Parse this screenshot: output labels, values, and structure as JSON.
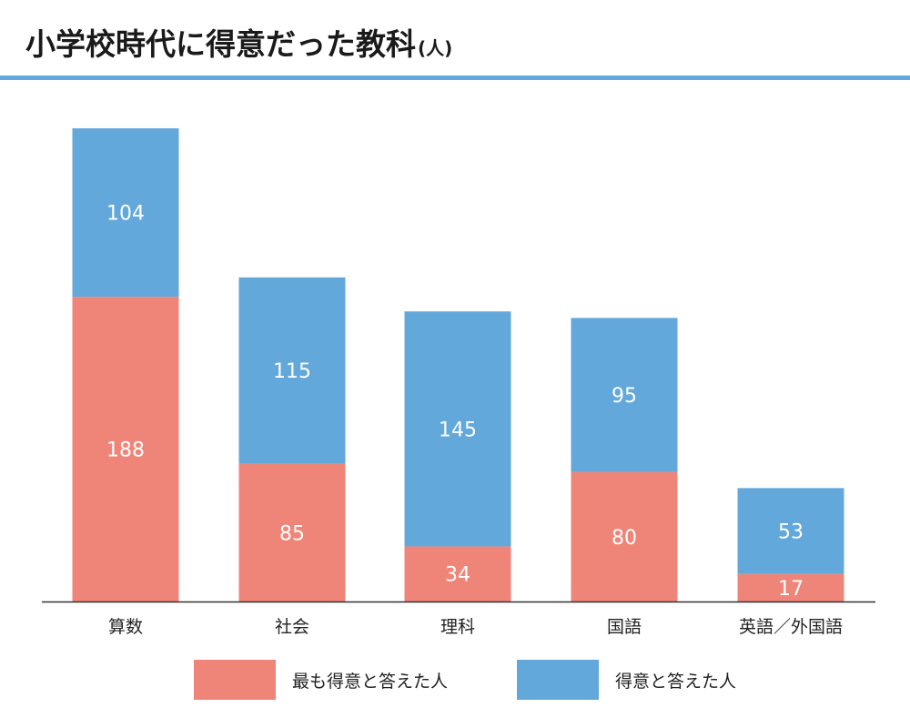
{
  "title": "小学校時代に得意だった教科",
  "title_unit": "(人)",
  "colors": {
    "most_good": "#ef8578",
    "good": "#63a8da",
    "rule": "#63a8da",
    "axis": "#333333",
    "label_on_bar": "#ffffff"
  },
  "legend": [
    {
      "label": "最も得意と答えた人",
      "color_key": "most_good"
    },
    {
      "label": "得意と答えた人",
      "color_key": "good"
    }
  ],
  "chart_data": {
    "type": "bar",
    "stacked": true,
    "categories": [
      "算数",
      "社会",
      "理科",
      "国語",
      "英語／外国語"
    ],
    "series": [
      {
        "name": "最も得意と答えた人",
        "values": [
          188,
          85,
          34,
          80,
          17
        ]
      },
      {
        "name": "得意と答えた人",
        "values": [
          104,
          115,
          145,
          95,
          53
        ]
      }
    ],
    "ylim": [
      0,
      292
    ],
    "grid": false,
    "legend_position": "bottom"
  }
}
